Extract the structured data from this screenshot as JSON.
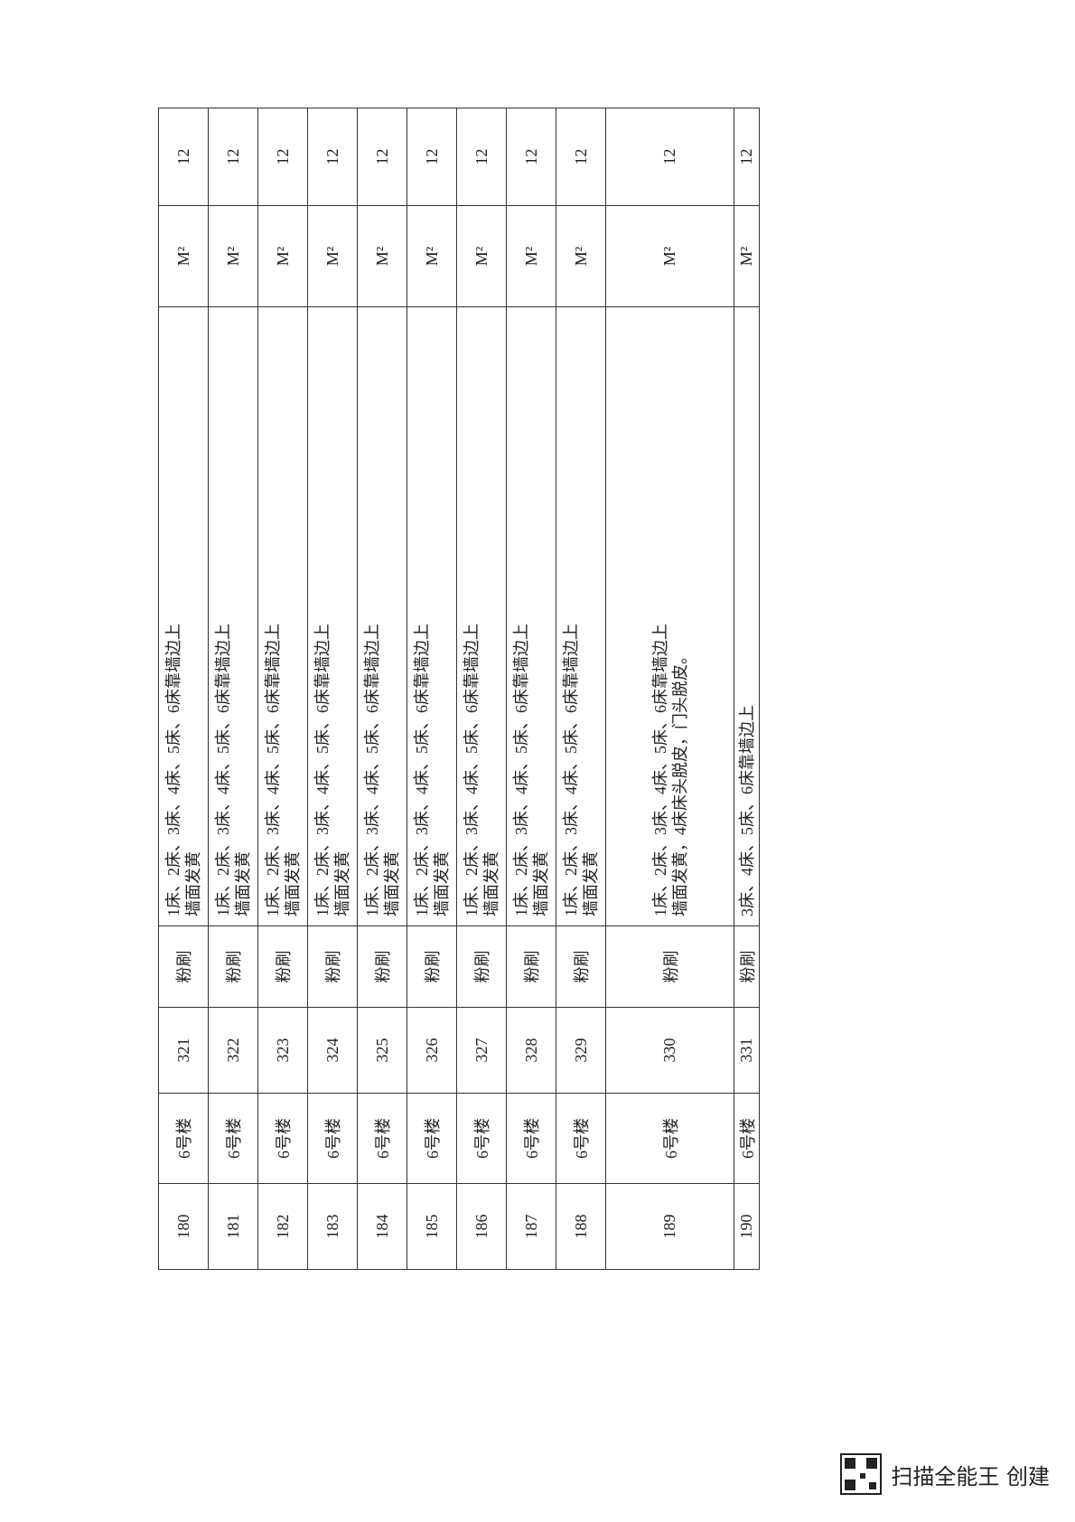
{
  "table": {
    "rows": [
      {
        "no": "180",
        "building": "6号楼",
        "code": "321",
        "type": "粉刷",
        "desc": [
          "1床、2床、3床、4床、5床、6床靠墙边上",
          "墙面发黄"
        ],
        "unit": "M²",
        "qty": "12"
      },
      {
        "no": "181",
        "building": "6号楼",
        "code": "322",
        "type": "粉刷",
        "desc": [
          "1床、2床、3床、4床、5床、6床靠墙边上",
          "墙面发黄"
        ],
        "unit": "M²",
        "qty": "12"
      },
      {
        "no": "182",
        "building": "6号楼",
        "code": "323",
        "type": "粉刷",
        "desc": [
          "1床、2床、3床、4床、5床、6床靠墙边上",
          "墙面发黄"
        ],
        "unit": "M²",
        "qty": "12"
      },
      {
        "no": "183",
        "building": "6号楼",
        "code": "324",
        "type": "粉刷",
        "desc": [
          "1床、2床、3床、4床、5床、6床靠墙边上",
          "墙面发黄"
        ],
        "unit": "M²",
        "qty": "12"
      },
      {
        "no": "184",
        "building": "6号楼",
        "code": "325",
        "type": "粉刷",
        "desc": [
          "1床、2床、3床、4床、5床、6床靠墙边上",
          "墙面发黄"
        ],
        "unit": "M²",
        "qty": "12"
      },
      {
        "no": "185",
        "building": "6号楼",
        "code": "326",
        "type": "粉刷",
        "desc": [
          "1床、2床、3床、4床、5床、6床靠墙边上",
          "墙面发黄"
        ],
        "unit": "M²",
        "qty": "12"
      },
      {
        "no": "186",
        "building": "6号楼",
        "code": "327",
        "type": "粉刷",
        "desc": [
          "1床、2床、3床、4床、5床、6床靠墙边上",
          "墙面发黄"
        ],
        "unit": "M²",
        "qty": "12"
      },
      {
        "no": "187",
        "building": "6号楼",
        "code": "328",
        "type": "粉刷",
        "desc": [
          "1床、2床、3床、4床、5床、6床靠墙边上",
          "墙面发黄"
        ],
        "unit": "M²",
        "qty": "12"
      },
      {
        "no": "188",
        "building": "6号楼",
        "code": "329",
        "type": "粉刷",
        "desc": [
          "1床、2床、3床、4床、5床、6床靠墙边上",
          "墙面发黄"
        ],
        "unit": "M²",
        "qty": "12"
      },
      {
        "no": "189",
        "building": "6号楼",
        "code": "330",
        "type": "粉刷",
        "desc": [
          "1床、2床、3床、4床、5床、6床靠墙边上",
          "墙面发黄，4床床头脱皮，门头脱皮。"
        ],
        "unit": "M²",
        "qty": "12"
      },
      {
        "no": "190",
        "building": "6号楼",
        "code": "331",
        "type": "粉刷",
        "desc": [
          "3床、4床、5床、6床靠墙边上"
        ],
        "unit": "M²",
        "qty": "12"
      }
    ]
  },
  "footer": "扫描全能王 创建"
}
